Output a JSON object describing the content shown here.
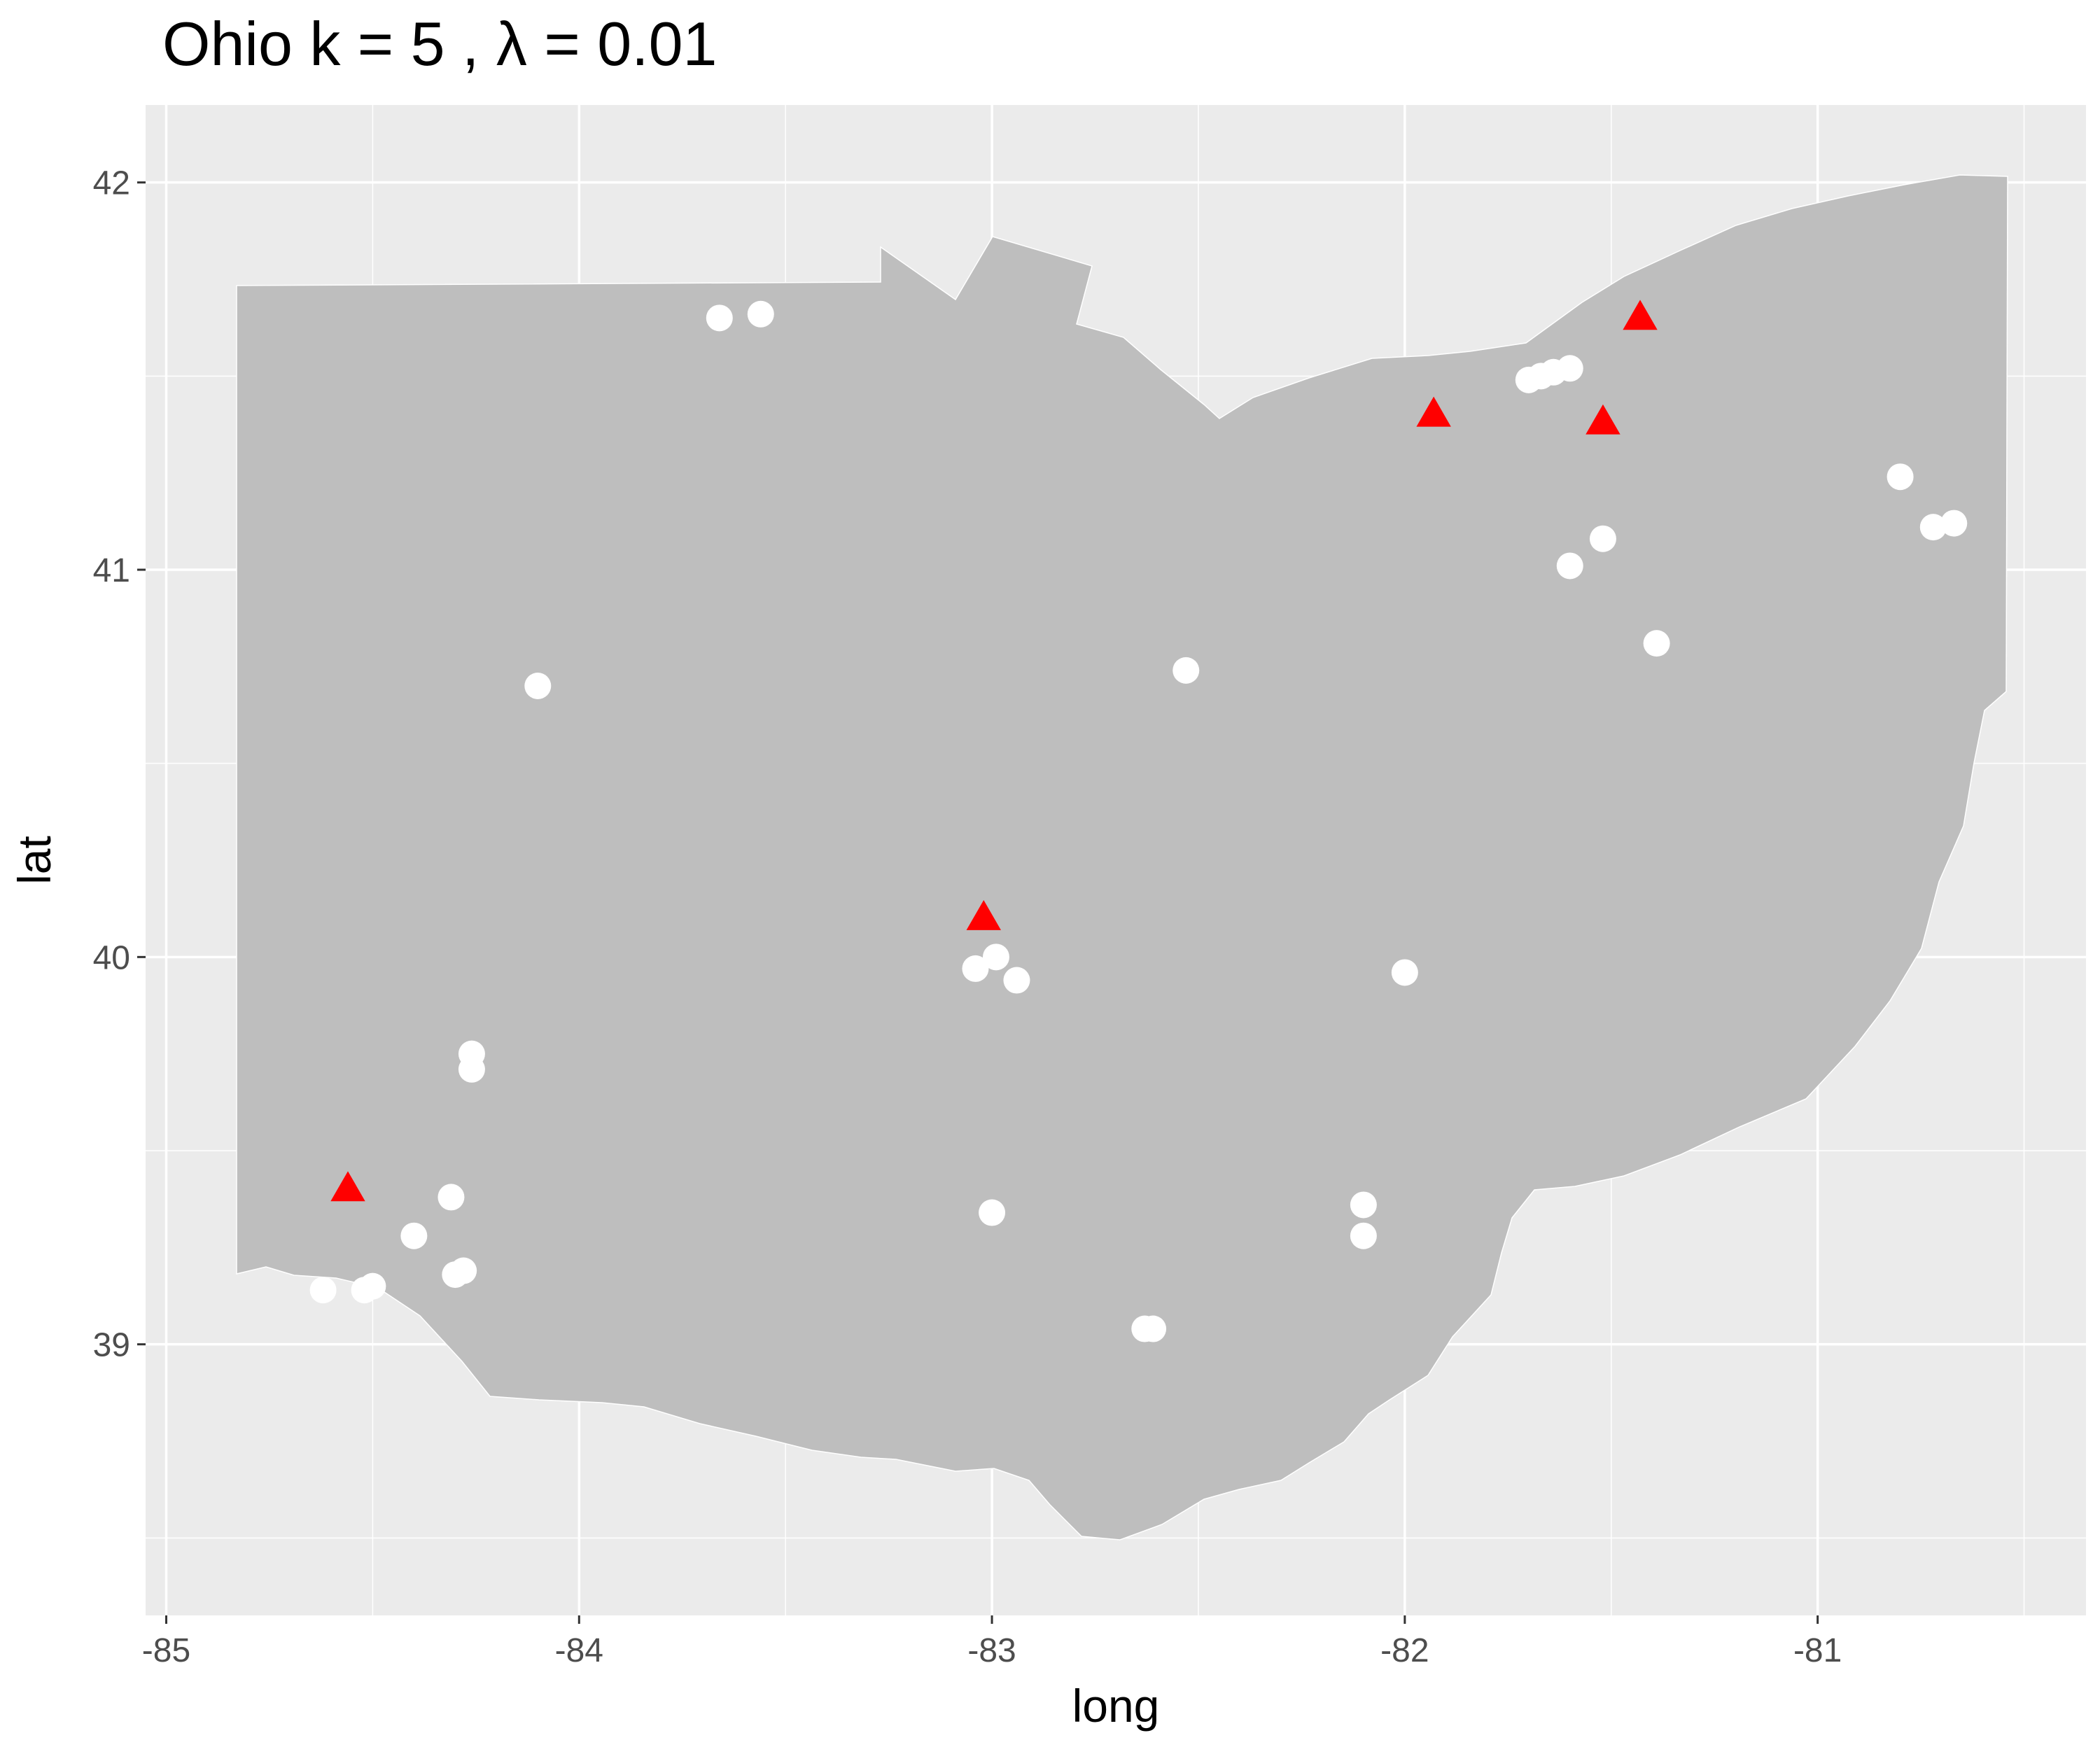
{
  "chart_data": {
    "type": "scatter",
    "title": "Ohio  k =  5 ,  λ  =  0.01",
    "xlabel": "long",
    "ylabel": "lat",
    "xlim": [
      -85.05,
      -80.35
    ],
    "ylim": [
      38.3,
      42.2
    ],
    "x_ticks": [
      -85,
      -84,
      -83,
      -82,
      -81
    ],
    "y_ticks": [
      39,
      40,
      41,
      42
    ],
    "x_tick_labels": [
      "-85",
      "-84",
      "-83",
      "-82",
      "-81"
    ],
    "y_tick_labels": [
      "39",
      "40",
      "41",
      "42"
    ],
    "grid": true,
    "panel_background": "#ebebeb",
    "map_fill": "#bebebe",
    "region": "Ohio",
    "series": [
      {
        "marker": "circle",
        "color": "#ffffff",
        "points": [
          {
            "x": -83.66,
            "y": 41.65
          },
          {
            "x": -83.56,
            "y": 41.66
          },
          {
            "x": -81.7,
            "y": 41.49
          },
          {
            "x": -81.67,
            "y": 41.5
          },
          {
            "x": -81.64,
            "y": 41.51
          },
          {
            "x": -81.6,
            "y": 41.52
          },
          {
            "x": -81.52,
            "y": 41.08
          },
          {
            "x": -81.6,
            "y": 41.01
          },
          {
            "x": -80.8,
            "y": 41.24
          },
          {
            "x": -80.72,
            "y": 41.11
          },
          {
            "x": -80.67,
            "y": 41.12
          },
          {
            "x": -81.39,
            "y": 40.81
          },
          {
            "x": -82.53,
            "y": 40.74
          },
          {
            "x": -84.1,
            "y": 40.7
          },
          {
            "x": -82.0,
            "y": 39.96
          },
          {
            "x": -83.04,
            "y": 39.97
          },
          {
            "x": -82.99,
            "y": 40.0
          },
          {
            "x": -82.94,
            "y": 39.94
          },
          {
            "x": -84.26,
            "y": 39.75
          },
          {
            "x": -84.26,
            "y": 39.71
          },
          {
            "x": -84.31,
            "y": 39.38
          },
          {
            "x": -84.4,
            "y": 39.28
          },
          {
            "x": -84.3,
            "y": 39.18
          },
          {
            "x": -84.28,
            "y": 39.19
          },
          {
            "x": -84.5,
            "y": 39.15
          },
          {
            "x": -84.62,
            "y": 39.14
          },
          {
            "x": -84.52,
            "y": 39.14
          },
          {
            "x": -82.1,
            "y": 39.36
          },
          {
            "x": -82.1,
            "y": 39.28
          },
          {
            "x": -83.0,
            "y": 39.34
          },
          {
            "x": -82.63,
            "y": 39.04
          },
          {
            "x": -82.61,
            "y": 39.04
          }
        ]
      },
      {
        "marker": "triangle",
        "color": "#ff0000",
        "points": [
          {
            "x": -81.43,
            "y": 41.65
          },
          {
            "x": -81.93,
            "y": 41.4
          },
          {
            "x": -81.52,
            "y": 41.38
          },
          {
            "x": -83.02,
            "y": 40.1
          },
          {
            "x": -84.56,
            "y": 39.4
          }
        ]
      }
    ]
  }
}
